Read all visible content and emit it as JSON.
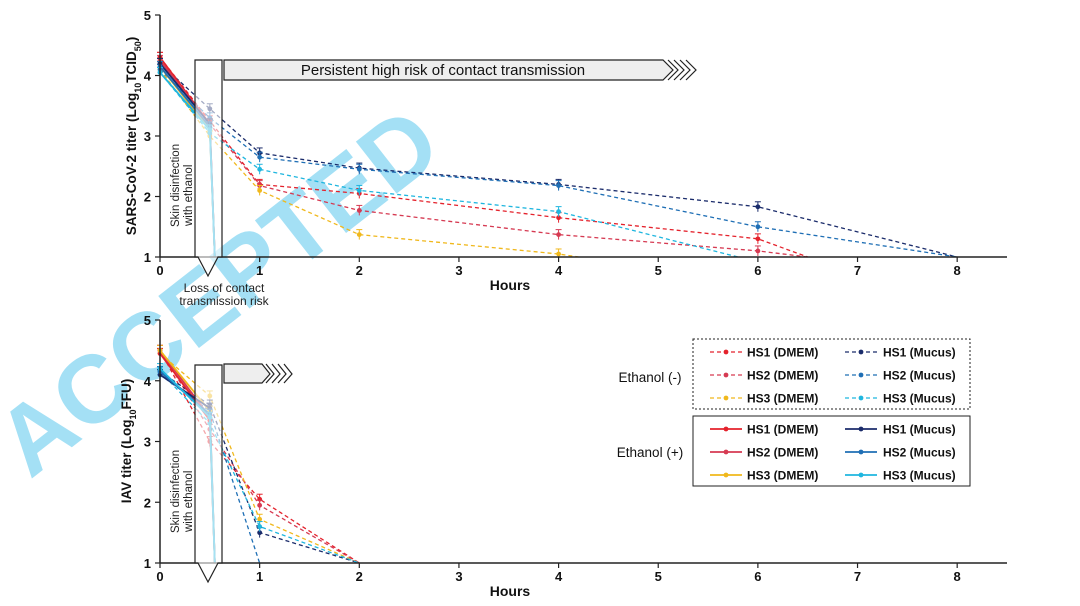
{
  "colors": {
    "hs1_dmem": "#e4222c",
    "hs2_dmem": "#d63a52",
    "hs3_dmem": "#f0b81c",
    "hs1_mucus": "#1b2c6b",
    "hs2_mucus": "#1f6fb5",
    "hs3_mucus": "#1fb6df",
    "watermark": "#5bc8ee"
  },
  "watermark": {
    "text": "ACCEPTED"
  },
  "legend": {
    "group_minus": "Ethanol (-)",
    "group_plus": "Ethanol (+)",
    "dmem": [
      "HS1 (DMEM)",
      "HS2 (DMEM)",
      "HS3 (DMEM)"
    ],
    "mucus": [
      "HS1 (Mucus)",
      "HS2 (Mucus)",
      "HS3 (Mucus)"
    ]
  },
  "chart_data": [
    {
      "type": "line",
      "panel": "top",
      "xlabel": "Hours",
      "ylabel_main": "SARS-CoV-2 titer (Log",
      "ylabel_sub": "10",
      "ylabel_tail": "TCID",
      "ylabel_sub2": "50",
      "ylabel_close": ")",
      "xlim": [
        0,
        8.5
      ],
      "ylim": [
        1,
        5
      ],
      "xticks": [
        "0",
        "1",
        "2",
        "3",
        "4",
        "5",
        "6",
        "7",
        "8"
      ],
      "yticks": [
        "1",
        "2",
        "3",
        "4",
        "5"
      ],
      "box_text_1": "Skin disinfection",
      "box_text_2": "with ethanol",
      "arrow_text": "Persistent high risk of contact transmission",
      "below_text_1": "Loss of contact",
      "below_text_2": "transmission risk",
      "series": [
        {
          "name": "HS1 (DMEM)",
          "style": "dashed",
          "x": [
            0,
            0.5,
            1,
            2,
            4,
            6,
            6.5
          ],
          "y": [
            4.3,
            3.25,
            2.2,
            2.05,
            1.65,
            1.3,
            1.0
          ]
        },
        {
          "name": "HS2 (DMEM)",
          "style": "dashed",
          "x": [
            0,
            0.5,
            1,
            2,
            4,
            6,
            6.5
          ],
          "y": [
            4.2,
            3.2,
            2.18,
            1.77,
            1.37,
            1.1,
            1.0
          ]
        },
        {
          "name": "HS3 (DMEM)",
          "style": "dashed",
          "x": [
            0,
            0.5,
            1,
            2,
            4,
            4.2
          ],
          "y": [
            4.1,
            3.0,
            2.1,
            1.37,
            1.05,
            1.0
          ]
        },
        {
          "name": "HS1 (Mucus)",
          "style": "dashed",
          "x": [
            0,
            0.5,
            1,
            2,
            4,
            6,
            8
          ],
          "y": [
            4.2,
            3.45,
            2.72,
            2.47,
            2.2,
            1.83,
            1.0
          ]
        },
        {
          "name": "HS2 (Mucus)",
          "style": "dashed",
          "x": [
            0,
            0.5,
            1,
            2,
            4,
            6,
            8
          ],
          "y": [
            4.1,
            3.3,
            2.65,
            2.45,
            2.18,
            1.5,
            1.0
          ]
        },
        {
          "name": "HS3 (Mucus)",
          "style": "dashed",
          "x": [
            0,
            0.5,
            1,
            2,
            4,
            5.8
          ],
          "y": [
            4.05,
            3.05,
            2.45,
            2.1,
            1.75,
            1.0
          ]
        },
        {
          "name": "HS1 (DMEM)",
          "style": "solid",
          "x": [
            0,
            0.5,
            0.55
          ],
          "y": [
            4.3,
            3.2,
            1.0
          ]
        },
        {
          "name": "HS2 (DMEM)",
          "style": "solid",
          "x": [
            0,
            0.5,
            0.55
          ],
          "y": [
            4.25,
            3.2,
            1.0
          ]
        },
        {
          "name": "HS3 (DMEM)",
          "style": "solid",
          "x": [
            0,
            0.5,
            0.55
          ],
          "y": [
            4.15,
            3.1,
            1.0
          ]
        },
        {
          "name": "HS1 (Mucus)",
          "style": "solid",
          "x": [
            0,
            0.5,
            0.55
          ],
          "y": [
            4.2,
            3.2,
            1.0
          ]
        },
        {
          "name": "HS2 (Mucus)",
          "style": "solid",
          "x": [
            0,
            0.5,
            0.55
          ],
          "y": [
            4.15,
            3.15,
            1.0
          ]
        },
        {
          "name": "HS3 (Mucus)",
          "style": "solid",
          "x": [
            0,
            0.5,
            0.55
          ],
          "y": [
            4.05,
            3.1,
            1.0
          ]
        }
      ]
    },
    {
      "type": "line",
      "panel": "bottom",
      "xlabel": "Hours",
      "ylabel_main": "IAV titer (Log",
      "ylabel_sub": "10",
      "ylabel_tail": "FFU)",
      "xlim": [
        0,
        8.5
      ],
      "ylim": [
        1,
        5
      ],
      "xticks": [
        "0",
        "1",
        "2",
        "3",
        "4",
        "5",
        "6",
        "7",
        "8"
      ],
      "yticks": [
        "1",
        "2",
        "3",
        "4",
        "5"
      ],
      "box_text_1": "Skin disinfection",
      "box_text_2": "with ethanol",
      "series": [
        {
          "name": "HS1 (DMEM)",
          "style": "dashed",
          "x": [
            0,
            0.5,
            1,
            2
          ],
          "y": [
            4.5,
            3.0,
            2.05,
            1.0
          ]
        },
        {
          "name": "HS2 (DMEM)",
          "style": "dashed",
          "x": [
            0,
            0.5,
            1,
            2
          ],
          "y": [
            4.5,
            3.2,
            1.95,
            1.0
          ]
        },
        {
          "name": "HS3 (DMEM)",
          "style": "dashed",
          "x": [
            0,
            0.5,
            1,
            2
          ],
          "y": [
            4.45,
            3.75,
            1.72,
            1.0
          ]
        },
        {
          "name": "HS1 (Mucus)",
          "style": "dashed",
          "x": [
            0,
            0.5,
            1,
            2
          ],
          "y": [
            4.15,
            3.6,
            1.5,
            1.0
          ]
        },
        {
          "name": "HS2 (Mucus)",
          "style": "dashed",
          "x": [
            0,
            0.5,
            1
          ],
          "y": [
            4.1,
            3.5,
            1.0
          ]
        },
        {
          "name": "HS3 (Mucus)",
          "style": "dashed",
          "x": [
            0,
            0.5,
            1,
            2
          ],
          "y": [
            4.15,
            3.3,
            1.6,
            1.0
          ]
        },
        {
          "name": "HS1 (DMEM)",
          "style": "solid",
          "x": [
            0,
            0.5,
            0.55
          ],
          "y": [
            4.45,
            3.35,
            1.0
          ]
        },
        {
          "name": "HS2 (DMEM)",
          "style": "solid",
          "x": [
            0,
            0.5,
            0.55
          ],
          "y": [
            4.5,
            3.4,
            1.0
          ]
        },
        {
          "name": "HS3 (DMEM)",
          "style": "solid",
          "x": [
            0,
            0.5,
            0.55
          ],
          "y": [
            4.5,
            3.5,
            1.0
          ]
        },
        {
          "name": "HS1 (Mucus)",
          "style": "solid",
          "x": [
            0,
            0.5,
            0.55
          ],
          "y": [
            4.1,
            3.55,
            1.0
          ]
        },
        {
          "name": "HS2 (Mucus)",
          "style": "solid",
          "x": [
            0,
            0.5,
            0.55
          ],
          "y": [
            4.15,
            3.45,
            1.0
          ]
        },
        {
          "name": "HS3 (Mucus)",
          "style": "solid",
          "x": [
            0,
            0.5,
            0.55
          ],
          "y": [
            4.2,
            3.4,
            1.0
          ]
        }
      ]
    }
  ]
}
